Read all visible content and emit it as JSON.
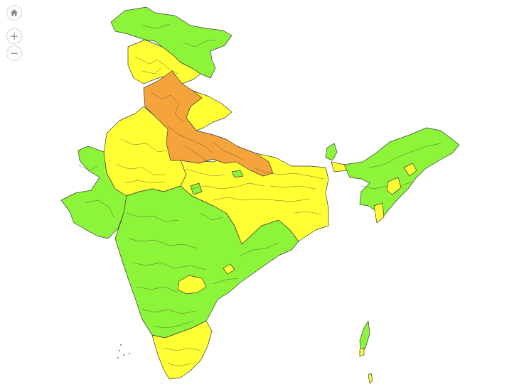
{
  "controls": {
    "home": {
      "icon": "home-icon"
    },
    "zoom_in": {
      "icon": "plus-icon",
      "glyph": "+"
    },
    "zoom_out": {
      "icon": "minus-icon",
      "glyph": "−"
    }
  },
  "map": {
    "colors": {
      "green": "#8cf53a",
      "yellow": "#ffff33",
      "orange": "#f5a43c",
      "border": "#3b3b3b",
      "background": "#ffffff"
    }
  }
}
